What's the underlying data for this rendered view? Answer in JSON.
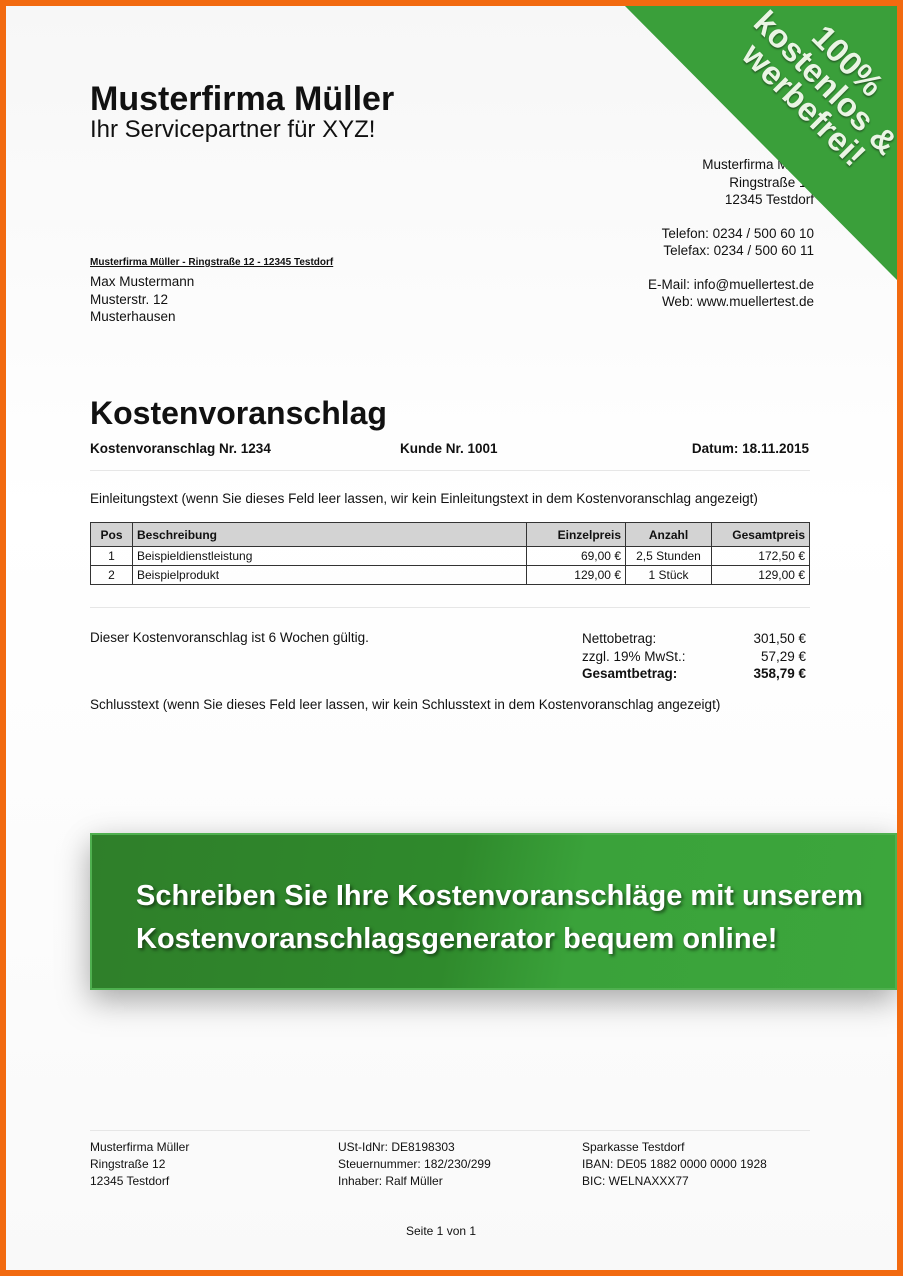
{
  "header": {
    "company": "Musterfirma Müller",
    "tagline": "Ihr Servicepartner für XYZ!",
    "address": [
      "Musterfirma Müller",
      "Ringstraße 12",
      "12345 Testdorf"
    ],
    "phone": "Telefon: 0234 / 500 60 10",
    "fax": "Telefax: 0234 / 500 60 11",
    "email": "E-Mail: info@muellertest.de",
    "web": "Web: www.muellertest.de"
  },
  "corner_ribbon": {
    "lines": [
      "100%",
      "kostenlos &",
      "werbefrei!"
    ],
    "color": "#3a9f3a"
  },
  "sender_line": "Musterfirma Müller - Ringstraße 12 - 12345 Testdorf",
  "recipient": [
    "Max Mustermann",
    "Musterstr. 12",
    "Musterhausen"
  ],
  "document": {
    "title": "Kostenvoranschlag",
    "number": "Kostenvoranschlag Nr. 1234",
    "customer": "Kunde Nr. 1001",
    "date": "Datum: 18.11.2015",
    "intro": "Einleitungstext (wenn Sie dieses Feld leer lassen, wir kein Einleitungstext in dem Kostenvoranschlag angezeigt)"
  },
  "table": {
    "headers": [
      "Pos",
      "Beschreibung",
      "Einzelpreis",
      "Anzahl",
      "Gesamtpreis"
    ],
    "rows": [
      [
        "1",
        "Beispieldienstleistung",
        "69,00 €",
        "2,5 Stunden",
        "172,50 €"
      ],
      [
        "2",
        "Beispielprodukt",
        "129,00 €",
        "1 Stück",
        "129,00 €"
      ]
    ]
  },
  "validity": "Dieser Kostenvoranschlag ist 6 Wochen gültig.",
  "totals": {
    "net_label": "Nettobetrag:",
    "net": "301,50 €",
    "vat_label": "zzgl. 19% MwSt.:",
    "vat": "57,29 €",
    "total_label": "Gesamtbetrag:",
    "total": "358,79 €"
  },
  "closing": "Schlusstext (wenn Sie dieses Feld leer lassen, wir kein Schlusstext in dem Kostenvoranschlag angezeigt)",
  "banner": {
    "line1": "Schreiben Sie Ihre Kostenvoranschläge mit unserem",
    "line2": "Kostenvoranschlagsgenerator bequem online!"
  },
  "footer": {
    "col1": [
      "Musterfirma Müller",
      "Ringstraße 12",
      "12345 Testdorf"
    ],
    "col2": [
      "USt-IdNr: DE8198303",
      "Steuernummer: 182/230/299",
      "Inhaber: Ralf Müller"
    ],
    "col3": [
      "Sparkasse Testdorf",
      "IBAN: DE05 1882 0000 0000 1928",
      "BIC: WELNAXXX77"
    ],
    "page": "Seite 1 von 1"
  }
}
